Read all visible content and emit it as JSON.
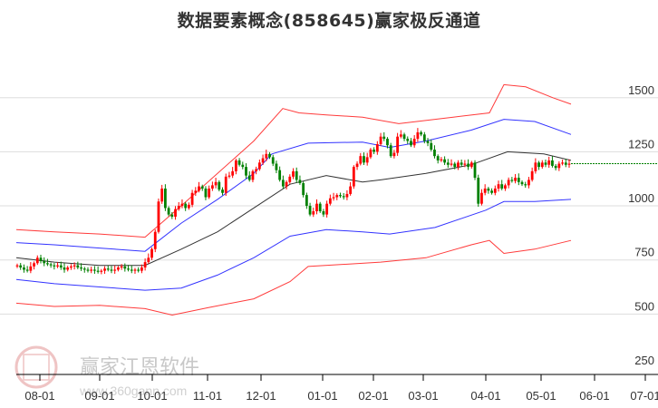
{
  "title": "数据要素概念(858645)赢家极反通道",
  "watermark": {
    "brand": "赢家江恩软件",
    "url": "www.360gann.com",
    "seal_chars": [
      "江",
      "赢",
      "恩",
      "家"
    ]
  },
  "colors": {
    "up": "#ff0000",
    "down": "#008000",
    "outer_band": "#ff3b3b",
    "inner_band": "#3333ff",
    "middle_line": "#333333",
    "last_price_line": "#008000",
    "grid": "#dddddd",
    "axis": "#000000"
  },
  "chart_data": {
    "type": "candlestick",
    "title": "数据要素概念(858645)赢家极反通道",
    "xlabel": "",
    "ylabel": "",
    "ylim": [
      250,
      1600
    ],
    "y_ticks": [
      250,
      500,
      750,
      1000,
      1250,
      1500
    ],
    "x_ticks": [
      "08-01",
      "09-01",
      "10-01",
      "11-01",
      "12-01",
      "01-01",
      "02-01",
      "03-01",
      "04-01",
      "05-01",
      "06-01",
      "07-01"
    ],
    "grid": true,
    "legend": "none",
    "last_price": 1195,
    "candles_close": [
      725,
      715,
      705,
      700,
      720,
      735,
      760,
      745,
      735,
      730,
      725,
      720,
      725,
      715,
      705,
      715,
      720,
      725,
      715,
      710,
      705,
      700,
      705,
      700,
      695,
      700,
      710,
      705,
      700,
      705,
      715,
      720,
      710,
      705,
      700,
      705,
      700,
      715,
      740,
      760,
      800,
      880,
      1020,
      1080,
      990,
      960,
      950,
      985,
      1000,
      1010,
      990,
      1005,
      1060,
      1070,
      1090,
      1080,
      1040,
      1080,
      1095,
      1110,
      1075,
      1060,
      1135,
      1140,
      1160,
      1210,
      1190,
      1180,
      1140,
      1120,
      1160,
      1170,
      1200,
      1220,
      1240,
      1225,
      1195,
      1165,
      1120,
      1090,
      1110,
      1135,
      1160,
      1120,
      1105,
      1050,
      1000,
      960,
      975,
      1010,
      975,
      960,
      1010,
      1035,
      1040,
      1050,
      1045,
      1040,
      1055,
      1090,
      1180,
      1195,
      1230,
      1200,
      1225,
      1260,
      1250,
      1285,
      1320,
      1310,
      1280,
      1230,
      1245,
      1320,
      1330,
      1310,
      1300,
      1280,
      1310,
      1340,
      1330,
      1300,
      1290,
      1260,
      1230,
      1210,
      1215,
      1200,
      1190,
      1195,
      1180,
      1200,
      1190,
      1195,
      1180,
      1200,
      1130,
      1010,
      1060,
      1080,
      1070,
      1060,
      1080,
      1100,
      1080,
      1095,
      1120,
      1115,
      1130,
      1110,
      1100,
      1095,
      1120,
      1160,
      1200,
      1180,
      1200,
      1190,
      1210,
      1185,
      1175,
      1195,
      1200,
      1190,
      1195
    ],
    "upper_outer_band": [
      [
        18,
        890
      ],
      [
        60,
        880
      ],
      [
        110,
        870
      ],
      [
        160,
        855
      ],
      [
        200,
        1000
      ],
      [
        240,
        1150
      ],
      [
        280,
        1300
      ],
      [
        312,
        1450
      ],
      [
        330,
        1430
      ],
      [
        360,
        1420
      ],
      [
        400,
        1410
      ],
      [
        440,
        1380
      ],
      [
        460,
        1390
      ],
      [
        500,
        1410
      ],
      [
        540,
        1430
      ],
      [
        556,
        1560
      ],
      [
        580,
        1550
      ],
      [
        610,
        1500
      ],
      [
        630,
        1470
      ]
    ],
    "upper_inner_band": [
      [
        18,
        830
      ],
      [
        60,
        820
      ],
      [
        110,
        805
      ],
      [
        160,
        790
      ],
      [
        200,
        920
      ],
      [
        240,
        1030
      ],
      [
        280,
        1150
      ],
      [
        300,
        1240
      ],
      [
        340,
        1290
      ],
      [
        400,
        1295
      ],
      [
        430,
        1270
      ],
      [
        470,
        1300
      ],
      [
        520,
        1350
      ],
      [
        556,
        1400
      ],
      [
        590,
        1390
      ],
      [
        630,
        1330
      ]
    ],
    "middle_line": [
      [
        18,
        760
      ],
      [
        60,
        740
      ],
      [
        110,
        725
      ],
      [
        160,
        725
      ],
      [
        200,
        800
      ],
      [
        240,
        880
      ],
      [
        280,
        990
      ],
      [
        320,
        1100
      ],
      [
        360,
        1140
      ],
      [
        400,
        1110
      ],
      [
        420,
        1120
      ],
      [
        470,
        1150
      ],
      [
        520,
        1190
      ],
      [
        560,
        1250
      ],
      [
        600,
        1240
      ],
      [
        630,
        1210
      ]
    ],
    "lower_inner_band": [
      [
        18,
        660
      ],
      [
        60,
        640
      ],
      [
        110,
        625
      ],
      [
        160,
        610
      ],
      [
        200,
        620
      ],
      [
        240,
        680
      ],
      [
        280,
        760
      ],
      [
        320,
        860
      ],
      [
        360,
        890
      ],
      [
        400,
        880
      ],
      [
        430,
        870
      ],
      [
        480,
        900
      ],
      [
        536,
        980
      ],
      [
        556,
        1020
      ],
      [
        590,
        1020
      ],
      [
        630,
        1030
      ]
    ],
    "lower_outer_band": [
      [
        18,
        550
      ],
      [
        60,
        535
      ],
      [
        110,
        540
      ],
      [
        160,
        525
      ],
      [
        190,
        495
      ],
      [
        230,
        530
      ],
      [
        280,
        570
      ],
      [
        320,
        650
      ],
      [
        340,
        720
      ],
      [
        380,
        730
      ],
      [
        420,
        740
      ],
      [
        470,
        760
      ],
      [
        520,
        820
      ],
      [
        540,
        840
      ],
      [
        556,
        780
      ],
      [
        590,
        800
      ],
      [
        630,
        840
      ]
    ]
  }
}
